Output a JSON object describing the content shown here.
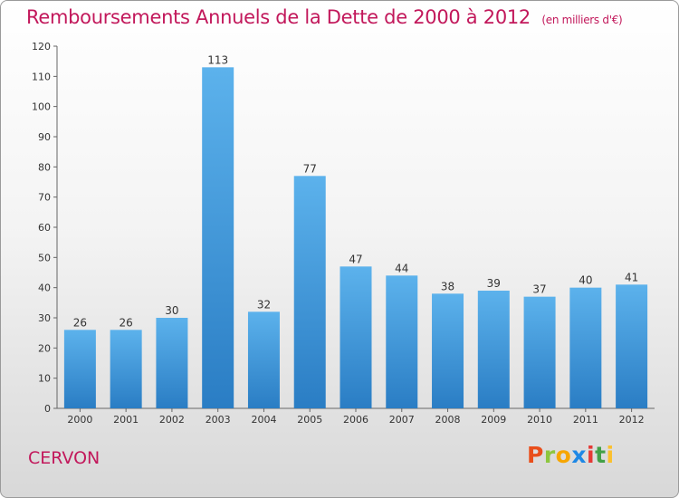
{
  "header": {
    "title": "Remboursements Annuels de la Dette de 2000 à 2012",
    "subtitle": "(en milliers d'€)"
  },
  "footer": {
    "commune": "CERVON",
    "logo": "Proxiti",
    "logo_colors": [
      "#e94e1b",
      "#8dc63f",
      "#f7a600",
      "#1e88e5",
      "#e53935",
      "#43a047",
      "#fbc02d"
    ]
  },
  "colors": {
    "bar_top": "#5cb2ec",
    "bar_bottom": "#2a7dc4",
    "title": "#c2185b"
  },
  "chart_data": {
    "type": "bar",
    "categories": [
      "2000",
      "2001",
      "2002",
      "2003",
      "2004",
      "2005",
      "2006",
      "2007",
      "2008",
      "2009",
      "2010",
      "2011",
      "2012"
    ],
    "values": [
      26,
      26,
      30,
      113,
      32,
      77,
      47,
      44,
      38,
      39,
      37,
      40,
      41
    ],
    "yticks": [
      "0",
      "10",
      "20",
      "30",
      "40",
      "50",
      "60",
      "70",
      "80",
      "90",
      "100",
      "110",
      "120"
    ],
    "ylim": [
      0,
      120
    ],
    "grid": false,
    "data_labels": true
  }
}
